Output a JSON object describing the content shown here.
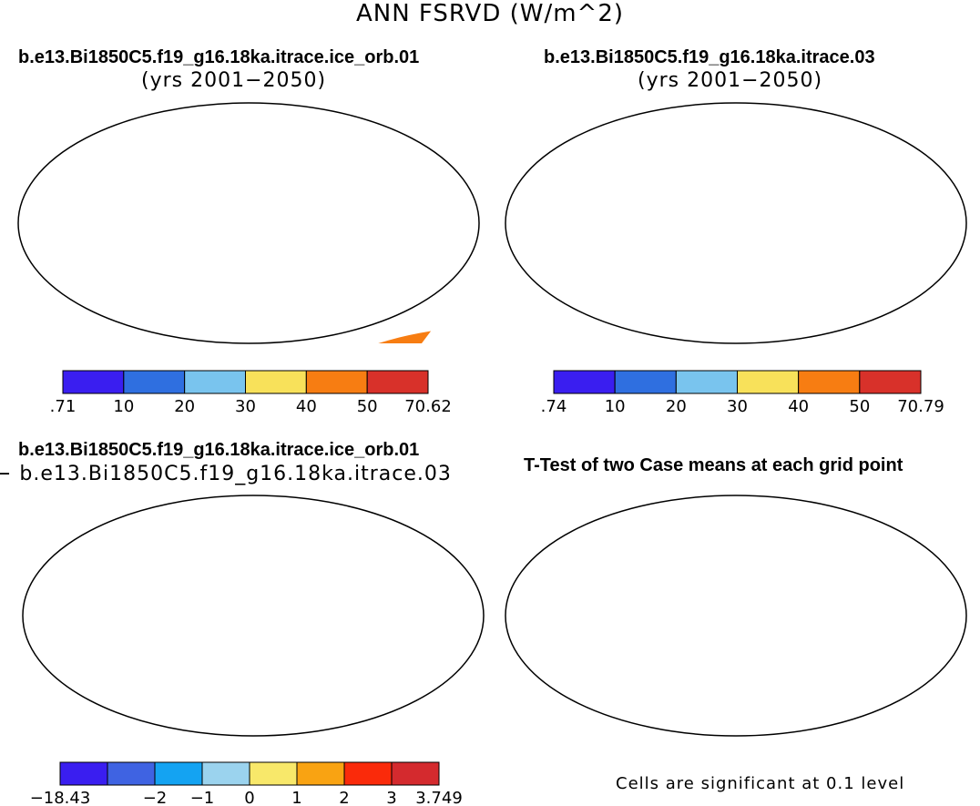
{
  "figure": {
    "title": "ANN FSRVD (W/m^2)"
  },
  "panels": [
    {
      "id": "case1",
      "title": "b.e13.Bi1850C5.f19_g16.18ka.itrace.ice_orb.01",
      "subtitle": "(yrs 2001−2050)",
      "colorbar": {
        "labels": [
          ".71",
          "10",
          "20",
          "30",
          "40",
          "50",
          "70.62"
        ],
        "colors": [
          "#3a1ef0",
          "#2f6fe0",
          "#79c4ee",
          "#f8e15a",
          "#f77d12",
          "#d8312a"
        ]
      }
    },
    {
      "id": "case2",
      "title": "b.e13.Bi1850C5.f19_g16.18ka.itrace.03",
      "subtitle": "(yrs 2001−2050)",
      "colorbar": {
        "labels": [
          ".74",
          "10",
          "20",
          "30",
          "40",
          "50",
          "70.79"
        ],
        "colors": [
          "#3a1ef0",
          "#2f6fe0",
          "#79c4ee",
          "#f8e15a",
          "#f77d12",
          "#d8312a"
        ]
      }
    },
    {
      "id": "difference",
      "title": "b.e13.Bi1850C5.f19_g16.18ka.itrace.ice_orb.01",
      "subtitle": "− b.e13.Bi1850C5.f19_g16.18ka.itrace.03",
      "colorbar": {
        "labels": [
          "−18.43",
          "−2",
          "−1",
          "0",
          "1",
          "2",
          "3",
          "3.749"
        ],
        "label_slots": [
          0,
          2,
          3,
          4,
          5,
          6,
          7,
          8
        ],
        "colors": [
          "#3a1ef0",
          "#3f63e2",
          "#14a3f2",
          "#9bd3ee",
          "#f8e86a",
          "#f9a312",
          "#fa2a0a",
          "#d42a2e"
        ]
      }
    },
    {
      "id": "ttest",
      "title": "T-Test of two Case means at each grid point",
      "note": "Cells are significant at 0.1 level",
      "significant_color": "#ee1111"
    }
  ]
}
